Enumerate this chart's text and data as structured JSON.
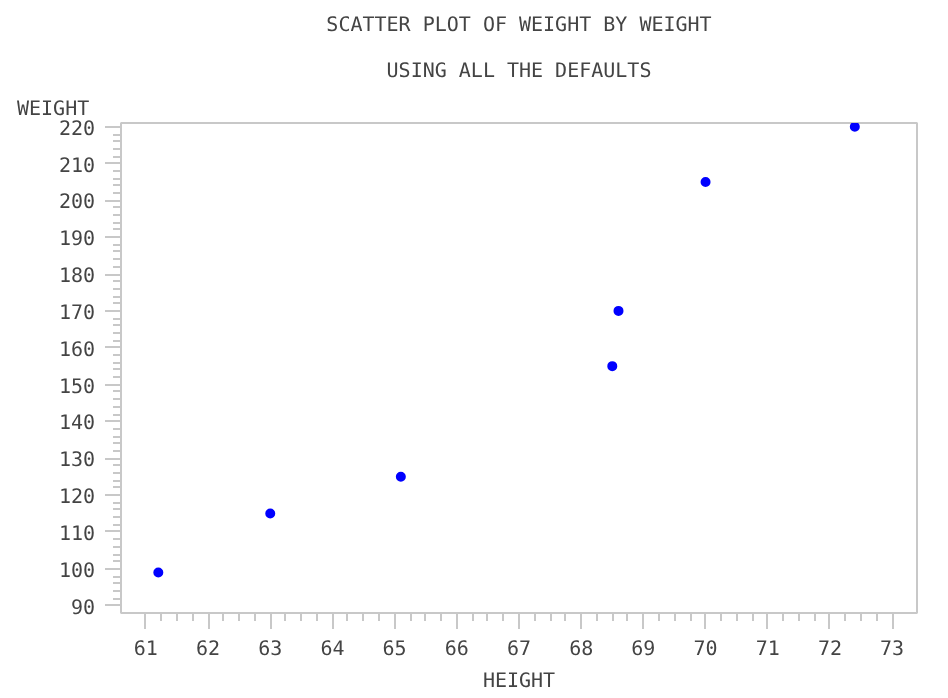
{
  "chart_data": {
    "type": "scatter",
    "title": "SCATTER PLOT OF WEIGHT BY WEIGHT",
    "subtitle": "USING ALL THE DEFAULTS",
    "xlabel": "HEIGHT",
    "ylabel": "WEIGHT",
    "x": [
      61.2,
      63,
      65.1,
      68.5,
      68.6,
      70,
      72.4
    ],
    "series": [
      {
        "color": "#0000ff",
        "values": [
          99,
          115,
          125,
          155,
          170,
          205,
          220
        ]
      }
    ],
    "xlim": [
      60.6,
      73.4
    ],
    "ylim": [
      88,
      221
    ],
    "xticks": [
      61,
      62,
      63,
      64,
      65,
      66,
      67,
      68,
      69,
      70,
      71,
      72,
      73
    ],
    "yticks": [
      90,
      100,
      110,
      120,
      130,
      140,
      150,
      160,
      170,
      180,
      190,
      200,
      210,
      220
    ],
    "marker": "circle",
    "grid": false
  }
}
